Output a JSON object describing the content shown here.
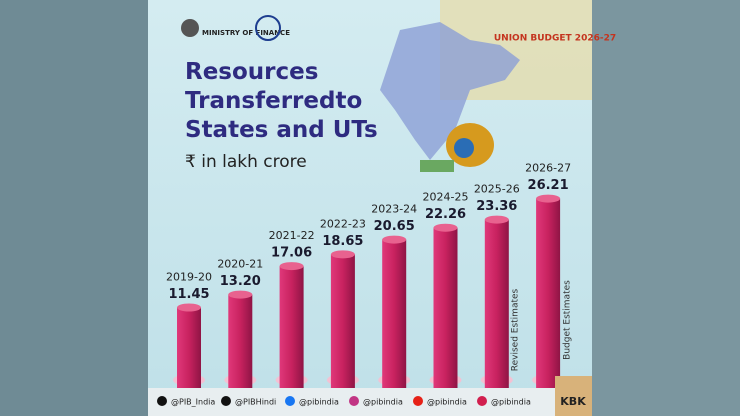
{
  "header": {
    "ministry": "MINISTRY OF FINANCE",
    "badge": "UNION BUDGET 2026-27"
  },
  "chart_data": {
    "type": "bar",
    "title": "Resources Transferredto States and UTs",
    "subtitle": "₹ in lakh crore",
    "categories": [
      "2019-20",
      "2020-21",
      "2021-22",
      "2022-23",
      "2023-24",
      "2024-25",
      "2025-26",
      "2026-27"
    ],
    "values": [
      11.45,
      13.2,
      17.06,
      18.65,
      20.65,
      22.26,
      23.36,
      26.21
    ],
    "value_labels": [
      "11.45",
      "13.20",
      "17.06",
      "18.65",
      "20.65",
      "22.26",
      "23.36",
      "26.21"
    ],
    "color": "#c8225f",
    "annotations": [
      "Revised Estimates",
      "Budget Estimates"
    ]
  },
  "footer": {
    "handles": [
      "@PIB_India",
      "@PIBHindi",
      "@pibindia",
      "@pibindia",
      "@pibindia",
      "@pibindia"
    ],
    "tag": "KBK"
  }
}
